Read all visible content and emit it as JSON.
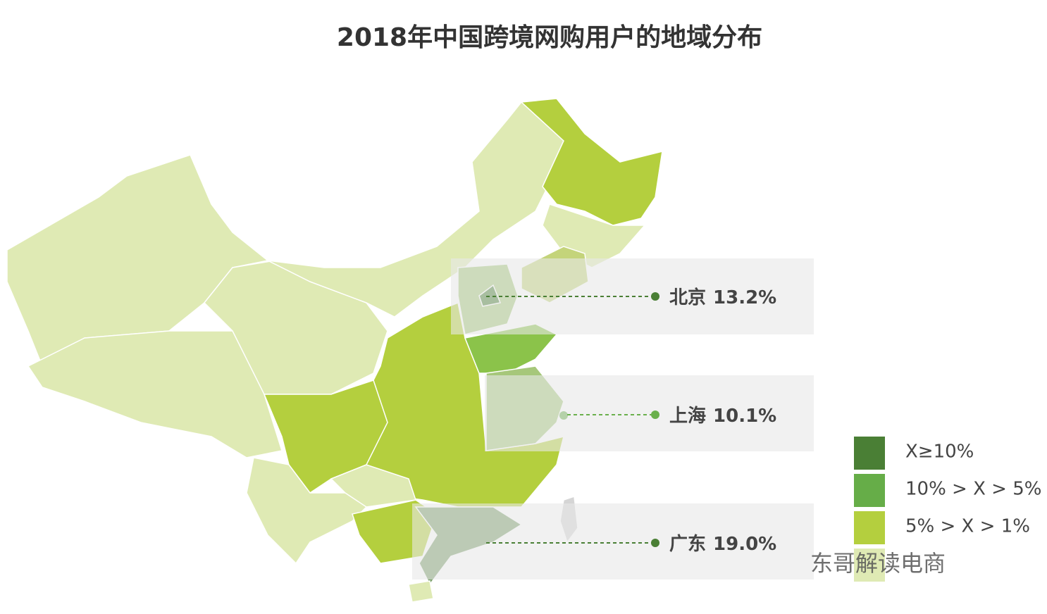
{
  "title": "2018年中国跨境网购用户的地域分布",
  "callouts": [
    {
      "name": "北京",
      "value": "13.2%",
      "color": "#4a7f35"
    },
    {
      "name": "上海",
      "value": "10.1%",
      "color": "#6ab04c"
    },
    {
      "name": "广东",
      "value": "19.0%",
      "color": "#4a7f35"
    }
  ],
  "legend": [
    {
      "label": "X≥10%",
      "color": "#4a7f35"
    },
    {
      "label": "10% > X > 5%",
      "color": "#66ad48"
    },
    {
      "label": "5% > X > 1%",
      "color": "#b4cf3e"
    },
    {
      "color": "#dfeab4"
    }
  ],
  "watermark": "东哥解读电商"
}
